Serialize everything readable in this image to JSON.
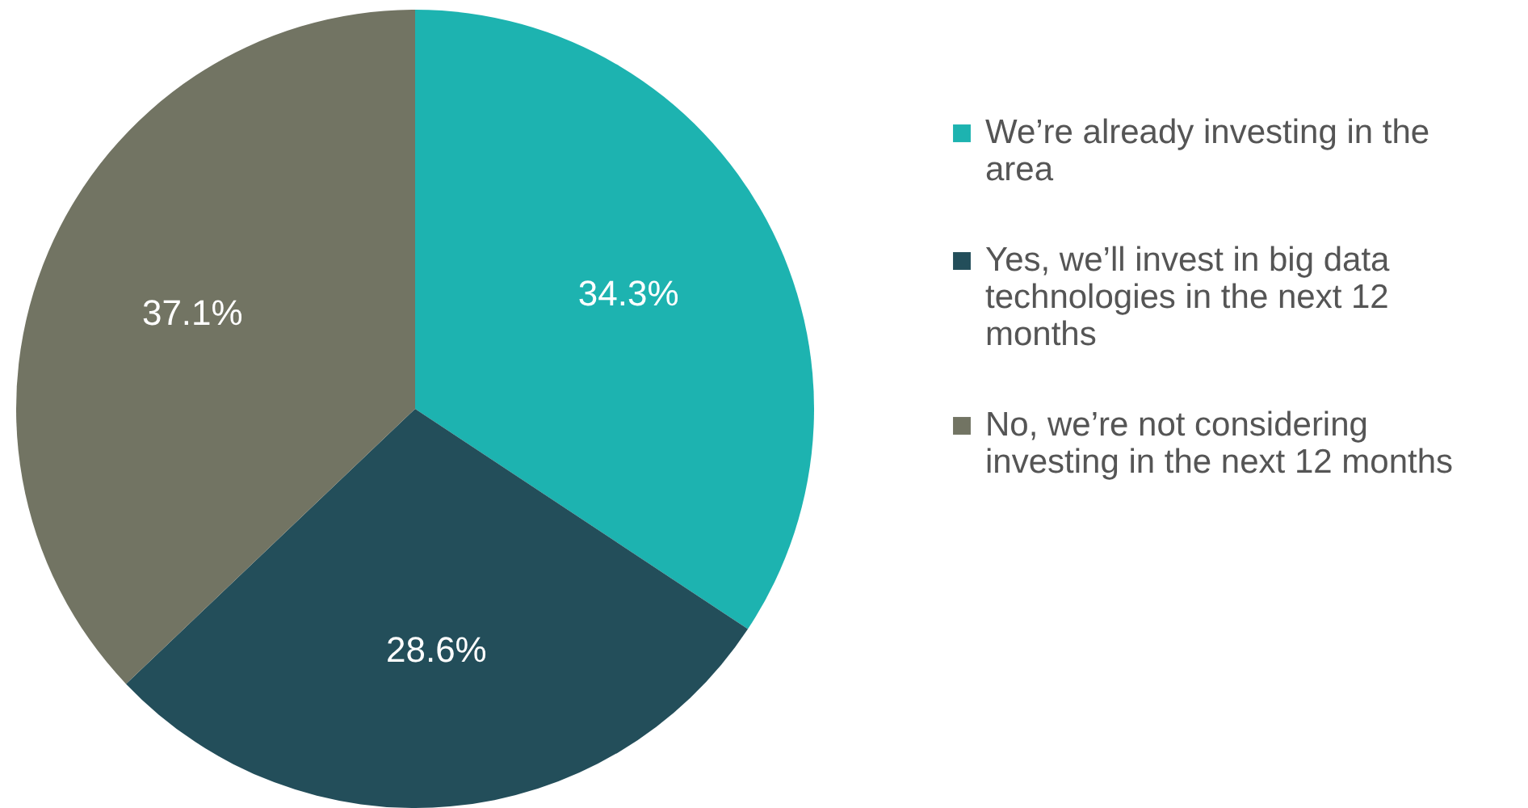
{
  "chart_data": {
    "type": "pie",
    "categories": [
      "We’re already investing in the area",
      "Yes, we’ll invest in big data technologies in the next 12 months",
      "No, we’re not considering investing in the next 12 months"
    ],
    "values": [
      34.3,
      28.6,
      37.1
    ],
    "colors": [
      "#1db3b0",
      "#234e5a",
      "#727463"
    ],
    "value_labels": [
      "34.3%",
      "28.6%",
      "37.1%"
    ],
    "legend": "right"
  }
}
